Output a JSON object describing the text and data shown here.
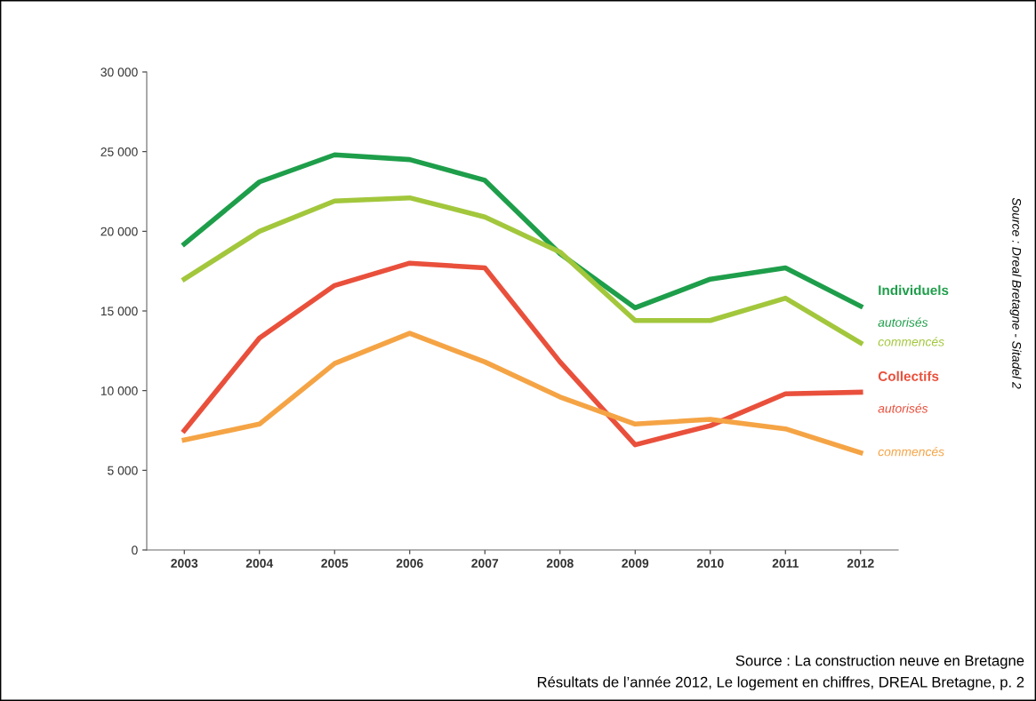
{
  "chart_data": {
    "type": "line",
    "categories": [
      "2003",
      "2004",
      "2005",
      "2006",
      "2007",
      "2008",
      "2009",
      "2010",
      "2011",
      "2012"
    ],
    "series": [
      {
        "name": "autorisés",
        "color": "#1e9e4a",
        "values": [
          19200,
          23100,
          24800,
          24500,
          23200,
          18600,
          15200,
          17000,
          17700,
          15300
        ]
      },
      {
        "name": "commencés",
        "color": "#a2c73c",
        "values": [
          17000,
          20000,
          21900,
          22100,
          20900,
          18700,
          14400,
          14400,
          15800,
          13000
        ]
      },
      {
        "name": "autorisés",
        "color": "#e9503c",
        "values": [
          7500,
          13300,
          16600,
          18000,
          17700,
          11800,
          6600,
          7800,
          9800,
          9900
        ]
      },
      {
        "name": "commencés",
        "color": "#f5a445",
        "values": [
          6900,
          7900,
          11700,
          13600,
          11800,
          9600,
          7900,
          8200,
          7600,
          6100
        ]
      }
    ],
    "ylim": [
      0,
      30000
    ],
    "yticks": [
      {
        "value": 0,
        "label": "0"
      },
      {
        "value": 5000,
        "label": "5 000"
      },
      {
        "value": 10000,
        "label": "10 000"
      },
      {
        "value": 15000,
        "label": "15 000"
      },
      {
        "value": 20000,
        "label": "20 000"
      },
      {
        "value": 25000,
        "label": "25 000"
      },
      {
        "value": 30000,
        "label": "30 000"
      }
    ],
    "grid": false,
    "legend": false,
    "marker": "none",
    "line_style": "solid",
    "annotations": [
      {
        "text": "Individuels",
        "x": "2012",
        "y": 15300
      },
      {
        "text": "Collectifs",
        "x": "2012",
        "y": 9900
      },
      "Source : Dreal Bretagne - Sitadel 2",
      "Source : La construction neuve en Bretagne",
      "Résultats de l’année 2012, Le logement en chiffres, DREAL Bretagne, p. 2"
    ]
  }
}
